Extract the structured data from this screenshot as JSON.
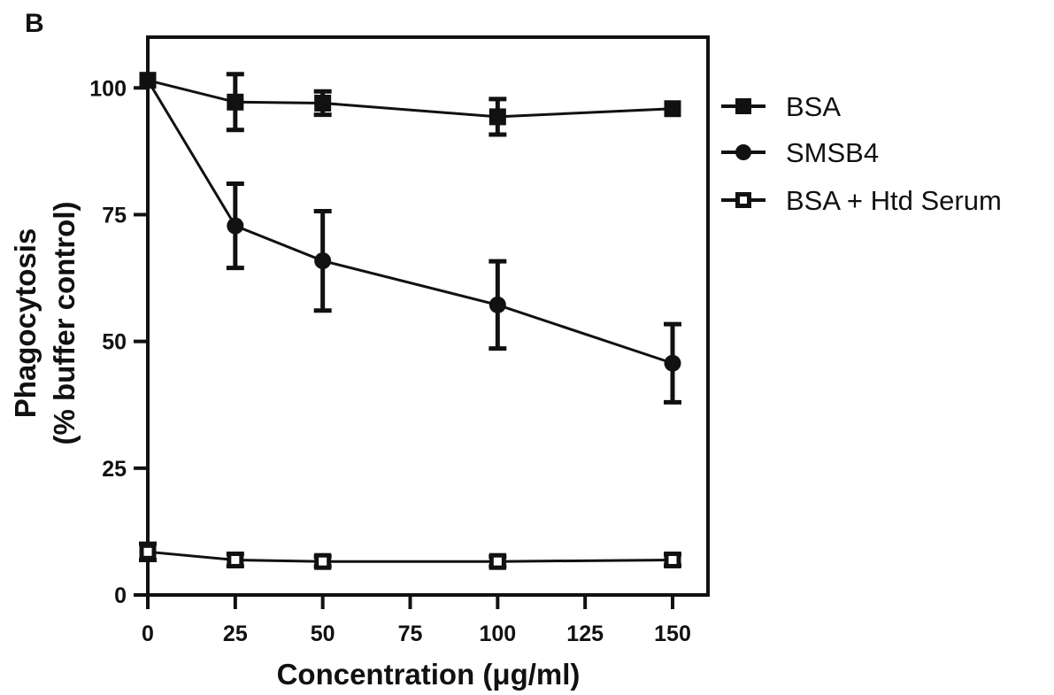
{
  "panel_label": "B",
  "chart_data": {
    "type": "line",
    "xlabel": "Concentration (μg/ml)",
    "ylabel_lines": [
      "Phagocytosis",
      "(%  buffer control)"
    ],
    "xlim": [
      0,
      150
    ],
    "ylim": [
      0,
      110
    ],
    "x_ticks": [
      "0",
      "25",
      "50",
      "75",
      "100",
      "125",
      "150"
    ],
    "y_ticks": [
      "0",
      "25",
      "50",
      "75",
      "100"
    ],
    "grid": false,
    "legend_position": "right",
    "series": [
      {
        "name": "BSA",
        "marker": "filled-square",
        "x": [
          0,
          25,
          50,
          100,
          150
        ],
        "y": [
          101.5,
          97.2,
          97.0,
          94.3,
          95.9
        ],
        "err": [
          0,
          5.5,
          2.3,
          3.5,
          0
        ]
      },
      {
        "name": "SMSB4",
        "marker": "filled-circle",
        "x": [
          0,
          25,
          50,
          100,
          150
        ],
        "y": [
          101.5,
          72.8,
          65.9,
          57.2,
          45.7
        ],
        "err": [
          0,
          8.3,
          9.8,
          8.6,
          7.7
        ]
      },
      {
        "name": "BSA + Htd Serum",
        "marker": "open-square",
        "x": [
          0,
          25,
          50,
          100,
          150
        ],
        "y": [
          8.5,
          6.9,
          6.6,
          6.6,
          6.9
        ],
        "err": [
          1.6,
          1.2,
          1.0,
          1.0,
          1.1
        ]
      }
    ],
    "colors": {
      "line": "#111111",
      "background": "#ffffff"
    }
  }
}
